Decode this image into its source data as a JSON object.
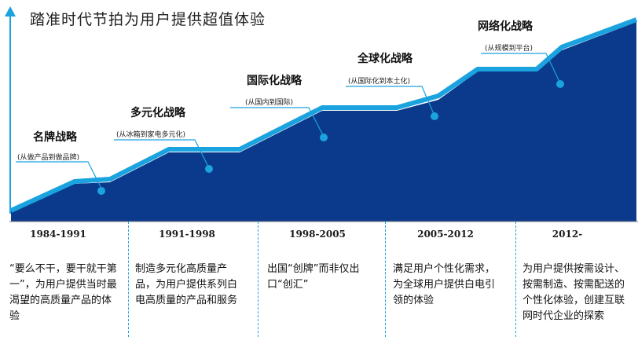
{
  "title": "踏准时代节拍为用户提供超值体验",
  "stages": [
    {
      "name": "名牌战略",
      "sub": "(从做产品到做品牌)",
      "period": "1984-1991",
      "desc": "“要么不干，要干就干第一”，为用户提供当时最渴望的高质量产品的体验"
    },
    {
      "name": "多元化战略",
      "sub": "(从冰箱到家电多元化)",
      "period": "1991-1998",
      "desc": "制造多元化高质量产品，为用户提供系列白电高质量的产品和服务"
    },
    {
      "name": "国际化战略",
      "sub": "(从国内到国际)",
      "period": "1998-2005",
      "desc": "出国“创牌”而非仅出口“创汇”"
    },
    {
      "name": "全球化战略",
      "sub": "(从国际化到本土化)",
      "period": "2005-2012",
      "desc": "满足用户个性化需求，为全球用户提供白电引领的体验"
    },
    {
      "name": "网络化战略",
      "sub": "(从规模到平台)",
      "period": "2012-",
      "desc": "为用户提供按需设计、按需制造、按需配送的个性化体验，创建互联网时代企业的探索"
    }
  ],
  "colors": {
    "fill": "#0b3a8c",
    "line": "#1aa3de",
    "text": "#1a1a1a"
  }
}
